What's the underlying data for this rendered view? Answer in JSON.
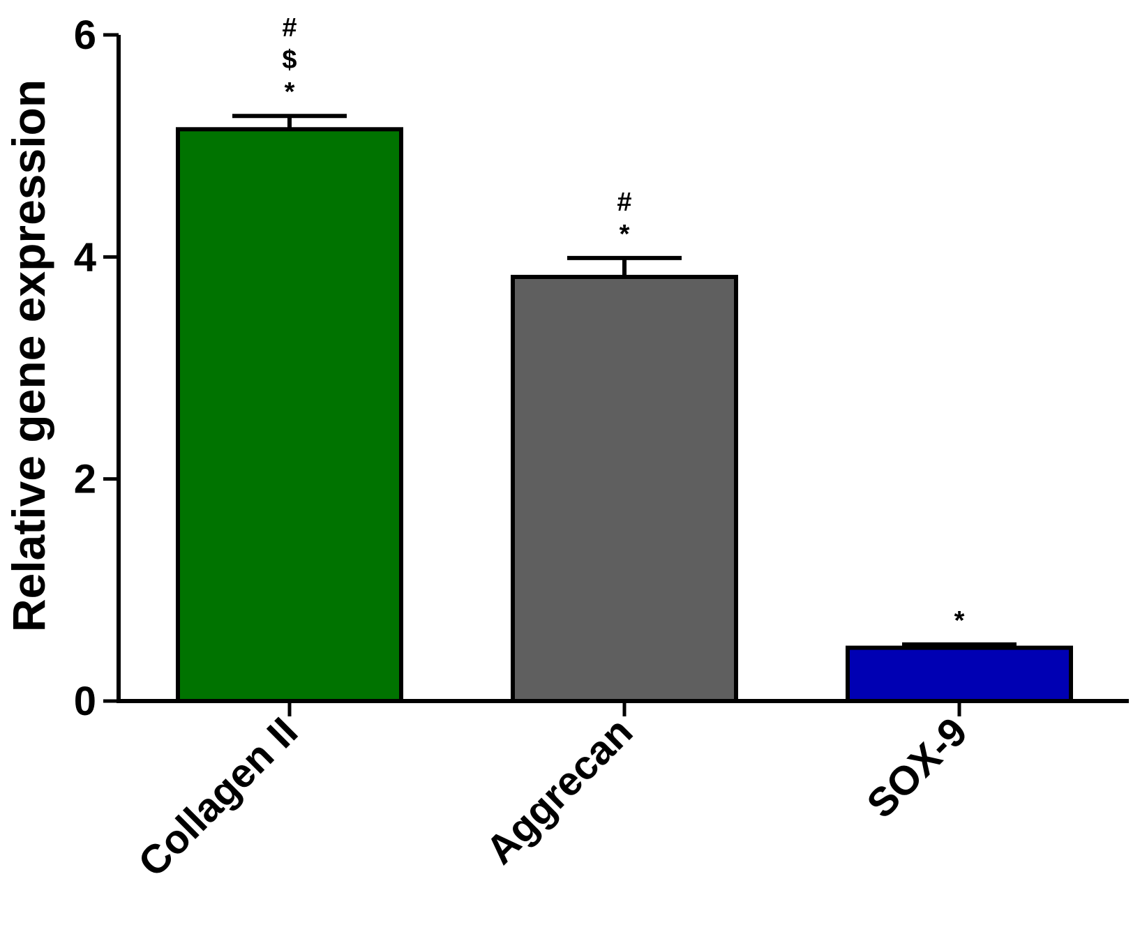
{
  "chart_data": {
    "type": "bar",
    "title": "",
    "xlabel": "",
    "ylabel": "Relative gene expression",
    "ylim": [
      0,
      6
    ],
    "yticks": [
      "0",
      "2",
      "4",
      "6"
    ],
    "categories": [
      "Collagen II",
      "Aggrecan",
      "SOX-9"
    ],
    "values": [
      5.15,
      3.82,
      0.48
    ],
    "errors": [
      0.12,
      0.17,
      0.03
    ],
    "significance": [
      [
        "#",
        "$",
        "*"
      ],
      [
        "#",
        "*"
      ],
      [
        "*"
      ]
    ],
    "colors": [
      "#007300",
      "#5f5f5f",
      "#0000b3"
    ],
    "grid": false,
    "legend": "none"
  }
}
